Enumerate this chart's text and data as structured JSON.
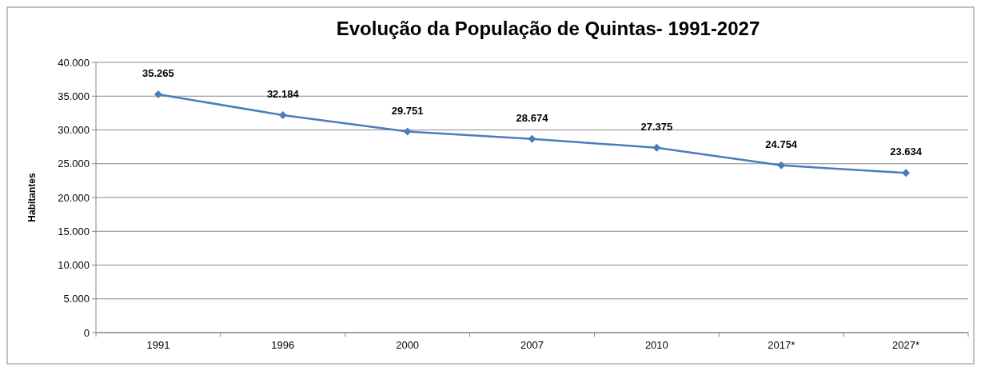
{
  "chart_data": {
    "type": "line",
    "title": "Evolução da População de Quintas- 1991-2027",
    "ylabel": "Habitantes",
    "categories": [
      "1991",
      "1996",
      "2000",
      "2007",
      "2010",
      "2017*",
      "2027*"
    ],
    "series": [
      {
        "color": "#4a7ebb",
        "values": [
          35265,
          32184,
          29751,
          28674,
          27375,
          24754,
          23634
        ],
        "value_labels": [
          "35.265",
          "32.184",
          "29.751",
          "28.674",
          "27.375",
          "24.754",
          "23.634"
        ]
      }
    ],
    "ylim": [
      0,
      40000
    ],
    "yticks": [
      {
        "value": 0,
        "label": "0"
      },
      {
        "value": 5000,
        "label": "5.000"
      },
      {
        "value": 10000,
        "label": "10.000"
      },
      {
        "value": 15000,
        "label": "15.000"
      },
      {
        "value": 20000,
        "label": "20.000"
      },
      {
        "value": 25000,
        "label": "25.000"
      },
      {
        "value": 30000,
        "label": "30.000"
      },
      {
        "value": 35000,
        "label": "35.000"
      },
      {
        "value": 40000,
        "label": "40.000"
      }
    ],
    "grid": "y",
    "marker": "diamond",
    "line_style": "solid"
  }
}
